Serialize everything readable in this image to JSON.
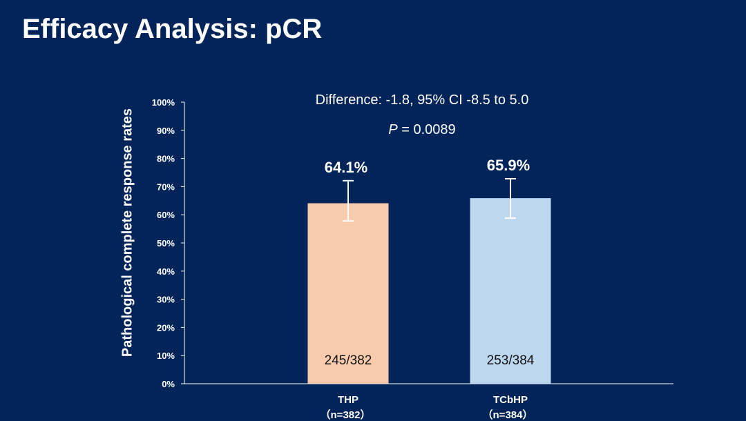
{
  "slide": {
    "title": "Efficacy Analysis: pCR"
  },
  "chart_data": {
    "type": "bar",
    "title": "",
    "ylabel": "Pathological complete response rates",
    "xlabel": "",
    "ylim": [
      0,
      100
    ],
    "yticks": [
      "0%",
      "10%",
      "20%",
      "30%",
      "40%",
      "50%",
      "60%",
      "70%",
      "80%",
      "90%",
      "100%"
    ],
    "categories": [
      "THP",
      "TCbHP"
    ],
    "category_sublabels": [
      "（n=382）",
      "（n=384）"
    ],
    "values": [
      64.1,
      65.9
    ],
    "data_labels": [
      "64.1%",
      "65.9%"
    ],
    "counts": [
      "245/382",
      "253/384"
    ],
    "error_low": [
      57.8,
      58.8
    ],
    "error_high": [
      72.1,
      72.8
    ],
    "colors": [
      "#F8CBAD",
      "#BDD7EE"
    ],
    "annotations": {
      "difference": "Difference: -1.8, 95% CI -8.5 to 5.0",
      "p_label": "P",
      "p_value": " = 0.0089"
    },
    "grid": false
  }
}
